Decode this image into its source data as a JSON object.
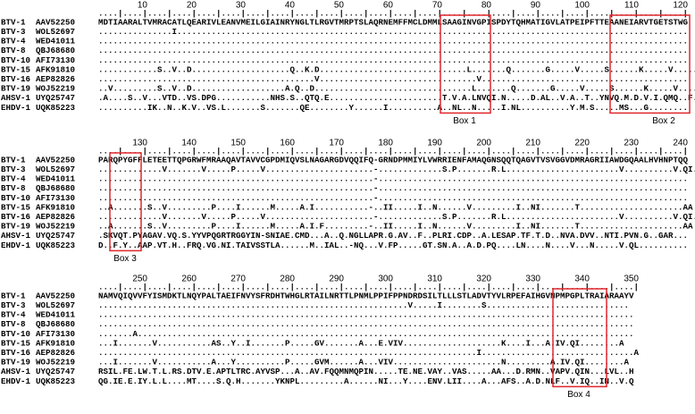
{
  "names": [
    {
      "serotype": "BTV-1",
      "accession": "AAV52250"
    },
    {
      "serotype": "BTV-3",
      "accession": "WOL52697"
    },
    {
      "serotype": "BTV-4",
      "accession": "WED41011"
    },
    {
      "serotype": "BTV-8",
      "accession": "QBJ68680"
    },
    {
      "serotype": "BTV-10",
      "accession": "AFI73130"
    },
    {
      "serotype": "BTV-15",
      "accession": "AFK91810"
    },
    {
      "serotype": "BTV-16",
      "accession": "AEP82826"
    },
    {
      "serotype": "BTV-19",
      "accession": "WOJ52219"
    },
    {
      "serotype": "AHSV-1",
      "accession": "UYQ25747"
    },
    {
      "serotype": "EHDV-1",
      "accession": "UQK85223"
    }
  ],
  "blocks": [
    {
      "ticks": [
        10,
        20,
        30,
        40,
        50,
        60,
        70,
        80,
        90,
        100,
        110,
        120
      ],
      "ruler": "....|....|....|....|....|....|....|....|....|....|....|....|....|....|....|....|....|....|....|....|....|....|....|....|",
      "seqs": [
        "MDTIAARALTVMRACATLQEARIVLEANVMEILGIAINRYNGLTLRGVTMRPTSLAQRNEMFFMCLDMMLSAAGINVGPISPDYTQHMATIGVLATPEIPFTTEAANEIARVTGETSTWG",
        "...............I........................................................................................................",
        "........................................................................................................................",
        "........................................................................................................................",
        "........................................................................................................................",
        "............S..V..D....................Q..K.D..............................L.......Q.......G.....V.....S......K.....V......",
        "............................................V................................V..........................................",
        "..V.........S..V..D...................A.Q..D................................L.......Q.......G.....V.....S......K.....V......",
        ".A....S..V...VTD..VS.DPG...........NHS.S..QTQ.E.......................T.V.A.LNVQI.N.....D.AL..V.A..T..YNVQ.M.D.V.I.QMQ..F.....",
        "..........IK..N..K.V..VS.L.......S.......QE........Y......I..........A..NL..N.....I.NL..........Y.M.S.....MS...G........"
      ],
      "boxes": [
        "Box 1",
        "Box 2"
      ]
    },
    {
      "ticks": [
        130,
        140,
        150,
        160,
        170,
        180,
        190,
        200,
        210,
        220,
        230,
        240
      ],
      "ruler": "....|....|....|....|....|....|....|....|....|....|....|....|....|....|....|....|....|....|....|....|....|....|....|....|",
      "seqs": [
        "PARQPYGFFLETEETTQPGRWFMRAAQAVTAVVCGPDMIQVSLNAGARGDVQQIFQ-GRNDPMMIYLVWRRIENFAMAQGNSQQTQAGVTVSVGGVDMRAGRIIAWDGQAALHVHNPTQQ",
        ".............V.......V.....P.....V......................-.............S.P.......R.L.......................V..........V.QI......",
        "........................................................-...............................................................",
        "........................................................-...............................................................",
        "........................................................-...............................................................",
        "..A.......S..V.........P....I......M.....A.I...........-..II.....I..N......V.........I..NI.......T.....................AA",
        ".............V.......V.....P.....V......................-.............S.P.......R.L.......................V..........V.QI......",
        "..A.......S..V.........P....I......M.....A.I.F.........-..II.....I..N......V.........I..NI.......T.....................AA",
        ".SKVQT.PYAGAV.VQ.S.YYVPQGRTRGGYIN-SNIAE.CMD...A..Q.NGLLAPR.G.AV..F..PLRI.CDP..A.LESAP.TF.T.D..NVA.DVV..NTI.PVN.G..GAR...",
        "D..F.Y..AAP.VT.H..FRQ.VG.NI.TAIVSSTLA......M..IAL..-NQ...V.FP.....GT.SN.A..A.D.PQ....LN....N....V...N.....V.QL.........."
      ],
      "boxes": [
        "Box 3"
      ]
    },
    {
      "ticks": [
        250,
        260,
        270,
        280,
        290,
        300,
        310,
        320,
        330,
        340,
        350
      ],
      "ruler": "....|....|....|....|....|....|....|....|....|....|....|....|....|....|....|....|....|....|....|....|....|....|",
      "seqs": [
        "NAMVQIQVVFYISMDKTLNQYPALTAEIFNVYSFRDHTWHGLRTAILNRTTLPNMLPPIFPPNDRDSILTLLLSTLADVTYVLRPEFAIHGVNPMPGPLTRAIARAAYV",
        "...............................................................V.....I........S.............................",
        ".............................................................................................................",
        ".............................................................................................................",
        ".......A.....................................................................................................",
        "...I.......V...........AS..Y..I.......P.....GV.......A...E.VIV....................K....I...A.IV.QI........A",
        ".............................................................................I...............................A",
        "...I.......V...........A...Y..........P.....GVM......A...VIV......................N.........A.IV.QI........A",
        "RSIL.FE.LW.T.L.RS.DTV.E.APTLTRC.AYVSP...A..AV.FQQMNMQPIN.....TE.NE.VAY..VAS.....AA...D.RMN..VAPV.QIN...LVL..H",
        "QG.IE.E.IY.L.L....MT....S.Q.H.......YKNPL.........A......NI...Y....ENV.LII....A...AFS..A.D.NLF..V.IQ..IN..V.Q"
      ],
      "boxes": [
        "Box 4"
      ]
    }
  ]
}
